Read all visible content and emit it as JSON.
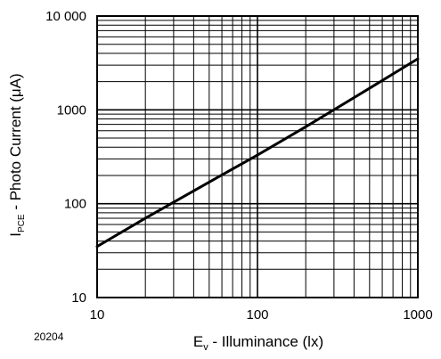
{
  "figure_id": "20204",
  "chart_data": {
    "type": "line",
    "title": "",
    "x_scale": "log",
    "y_scale": "log",
    "xlim": [
      10,
      1000
    ],
    "ylim": [
      10,
      10000
    ],
    "grid": true,
    "x_ticks": [
      {
        "value": 10,
        "label": "10"
      },
      {
        "value": 100,
        "label": "100"
      },
      {
        "value": 1000,
        "label": "1000"
      }
    ],
    "y_ticks": [
      {
        "value": 10,
        "label": "10"
      },
      {
        "value": 100,
        "label": "100"
      },
      {
        "value": 1000,
        "label": "1000"
      },
      {
        "value": 10000,
        "label": "10 000"
      }
    ],
    "xlabel": {
      "main": "E",
      "sub": "v",
      "rest": " - Illuminance (lx)"
    },
    "ylabel": {
      "main": "I",
      "sub": "PCE",
      "rest": " - Photo Current (μA)"
    },
    "series": [
      {
        "color": "#000000",
        "x": [
          10,
          20,
          50,
          100,
          200,
          500,
          1000
        ],
        "y": [
          35,
          70,
          170,
          330,
          660,
          1700,
          3500
        ]
      }
    ]
  }
}
